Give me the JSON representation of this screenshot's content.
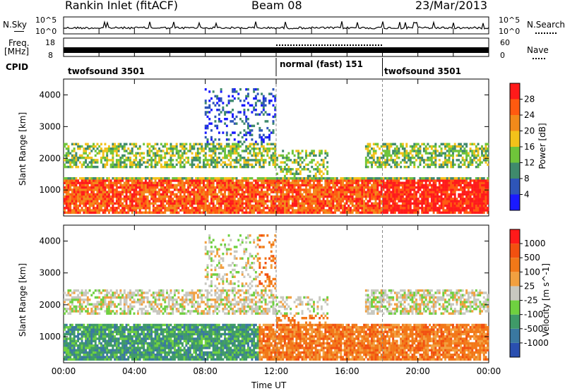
{
  "header": {
    "station": "Rankin Inlet (fitACF)",
    "beam": "Beam 08",
    "date": "23/Mar/2013"
  },
  "status_panel": {
    "nsky_label": "N.Sky",
    "nsky_ticks": [
      "10^5",
      "10^0"
    ],
    "nsearch_label": "N.Search",
    "nsearch_ticks": [
      "10^5",
      "10^0"
    ],
    "freq_label_1": "Freq.",
    "freq_label_2": "[MHz]",
    "freq_ticks": [
      "18",
      "8"
    ],
    "nave_label": "Nave",
    "nave_ticks": [
      "60",
      "0"
    ],
    "cpid_label": "CPID",
    "cpid_segments": [
      {
        "label": "twofsound 3501"
      },
      {
        "label": "normal (fast) 151"
      },
      {
        "label": "twofsound 3501"
      }
    ]
  },
  "chart_data": [
    {
      "type": "heatmap",
      "parameter": "Power",
      "xlabel": "",
      "ylabel": "Slant Range [km]",
      "x_ticks": [
        "00:00",
        "04:00",
        "08:00",
        "12:00",
        "16:00",
        "20:00",
        "00:00"
      ],
      "xlim_hours": [
        0,
        24
      ],
      "y_ticks": [
        1000,
        2000,
        3000,
        4000
      ],
      "ylim": [
        180,
        4500
      ],
      "colorbar": {
        "label": "Power [dB]",
        "ticks": [
          "4",
          "8",
          "12",
          "16",
          "20",
          "24",
          "28"
        ],
        "colors": [
          "#1a1aff",
          "#2e55b8",
          "#3f8a6c",
          "#6fc43a",
          "#f2c21a",
          "#f28a1a",
          "#ff5a10",
          "#ff1a1a"
        ]
      },
      "mode_boundaries_hours": [
        12.0,
        18.0
      ]
    },
    {
      "type": "heatmap",
      "parameter": "Velocity",
      "xlabel": "Time UT",
      "ylabel": "Slant Range [km]",
      "x_ticks": [
        "00:00",
        "04:00",
        "08:00",
        "12:00",
        "16:00",
        "20:00",
        "00:00"
      ],
      "xlim_hours": [
        0,
        24
      ],
      "y_ticks": [
        1000,
        2000,
        3000,
        4000
      ],
      "ylim": [
        180,
        4500
      ],
      "colorbar": {
        "label": "Velocity [m s^-1]",
        "ticks": [
          "1000",
          "500",
          "100",
          "25",
          "-25",
          "-100",
          "-500",
          "-1000"
        ],
        "colors": [
          "#2a4fb0",
          "#3a78a0",
          "#3f9a68",
          "#6fd040",
          "#c8c8c0",
          "#f2a040",
          "#f27818",
          "#f25010",
          "#ff1a1a"
        ]
      },
      "mode_boundaries_hours": [
        12.0,
        18.0
      ]
    }
  ]
}
